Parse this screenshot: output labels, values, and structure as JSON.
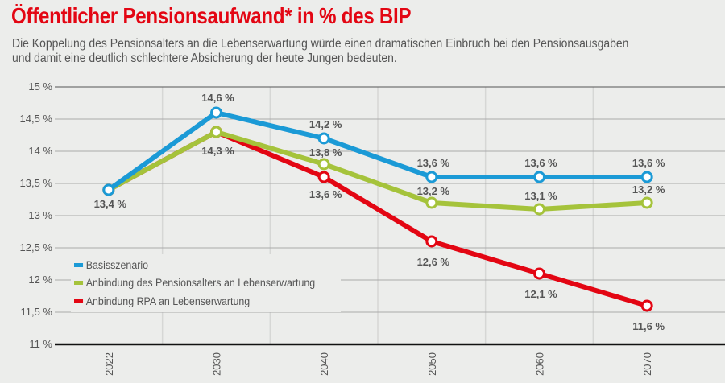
{
  "chart_data": {
    "type": "line",
    "title": "Öffentlicher Pensionsaufwand* in % des BIP",
    "subtitle": [
      "Die Koppelung des Pensionsalters an die Lebenserwartung würde einen dramatischen Einbruch bei den Pensionsausgaben",
      "und damit eine deutlich schlechtere Absicherung der heute Jungen bedeuten."
    ],
    "categories": [
      "2022",
      "2030",
      "2040",
      "2050",
      "2060",
      "2070"
    ],
    "ylim": [
      11,
      15
    ],
    "yticks": [
      "11 %",
      "11,5 %",
      "12 %",
      "12,5 %",
      "13 %",
      "13,5 %",
      "14 %",
      "14,5 %",
      "15 %"
    ],
    "grid": true,
    "legend_position": "bottom-left",
    "series": [
      {
        "name": "Basisszenario",
        "color": "#1b9ad6",
        "values": [
          13.4,
          14.6,
          14.2,
          13.6,
          13.6,
          13.6
        ],
        "labels": [
          "",
          "14,6 %",
          "14,2 %",
          "13,6 %",
          "13,6 %",
          "13,6 %"
        ]
      },
      {
        "name": "Anbindung des Pensionsalters an Lebenserwartung",
        "color": "#a5c33b",
        "values": [
          13.4,
          14.3,
          13.8,
          13.2,
          13.1,
          13.2
        ],
        "labels": [
          "",
          "14,3 %",
          "13,8 %",
          "13,2 %",
          "13,1 %",
          "13,2 %"
        ]
      },
      {
        "name": "Anbindung RPA an Lebenserwartung",
        "color": "#e30613",
        "values": [
          13.4,
          14.3,
          13.6,
          12.6,
          12.1,
          11.6
        ],
        "labels": [
          "13,4 %",
          "",
          "13,6 %",
          "12,6 %",
          "12,1 %",
          "11,6 %"
        ]
      }
    ]
  }
}
